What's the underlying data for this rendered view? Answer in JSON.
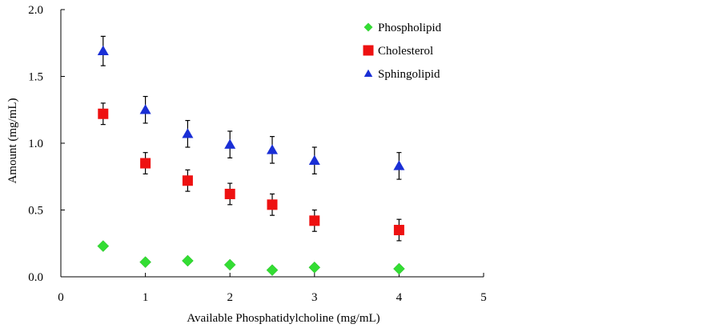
{
  "chart_data": {
    "type": "scatter",
    "title": "",
    "xlabel": "Available Phosphatidylcholine (mg/mL)",
    "ylabel": "Amount (mg/mL)",
    "xlim": [
      0,
      5
    ],
    "ylim": [
      0,
      2.0
    ],
    "xticks": [
      "0",
      "1",
      "2",
      "3",
      "4",
      "5"
    ],
    "yticks": [
      "0.0",
      "0.5",
      "1.0",
      "1.5",
      "2.0"
    ],
    "grid": false,
    "legend_position": "top-right",
    "series": [
      {
        "name": "Phospholipid",
        "marker": "diamond",
        "color": "#33dd33",
        "x": [
          0.5,
          1,
          1.5,
          2,
          2.5,
          3,
          4
        ],
        "y": [
          0.23,
          0.11,
          0.12,
          0.09,
          0.05,
          0.07,
          0.06
        ],
        "err": [
          0.02,
          0.02,
          0.02,
          0.02,
          0.02,
          0.02,
          0.02
        ]
      },
      {
        "name": "Cholesterol",
        "marker": "square",
        "color": "#ee1111",
        "x": [
          0.5,
          1,
          1.5,
          2,
          2.5,
          3,
          4
        ],
        "y": [
          1.22,
          0.85,
          0.72,
          0.62,
          0.54,
          0.42,
          0.35
        ],
        "err": [
          0.08,
          0.08,
          0.08,
          0.08,
          0.08,
          0.08,
          0.08
        ]
      },
      {
        "name": "Sphingolipid",
        "marker": "triangle",
        "color": "#1a2fd6",
        "x": [
          0.5,
          1,
          1.5,
          2,
          2.5,
          3,
          4
        ],
        "y": [
          1.69,
          1.25,
          1.07,
          0.99,
          0.95,
          0.87,
          0.83
        ],
        "err": [
          0.11,
          0.1,
          0.1,
          0.1,
          0.1,
          0.1,
          0.1
        ]
      }
    ]
  }
}
